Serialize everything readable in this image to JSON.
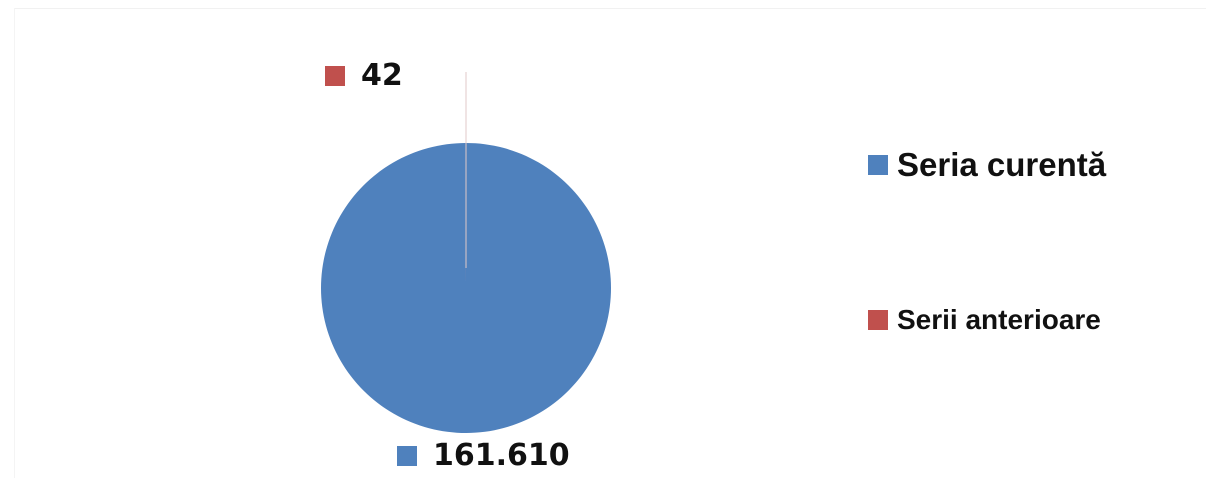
{
  "chart_data": {
    "type": "pie",
    "categories": [
      "Seria curentă",
      "Serii anterioare"
    ],
    "values": [
      161610,
      42
    ],
    "data_labels": [
      "161.610",
      "42"
    ],
    "colors": [
      "#4F81BD",
      "#C0504D"
    ],
    "legend": {
      "placement": "right",
      "entries": [
        "Seria curentă",
        "Serii anterioare"
      ]
    }
  }
}
